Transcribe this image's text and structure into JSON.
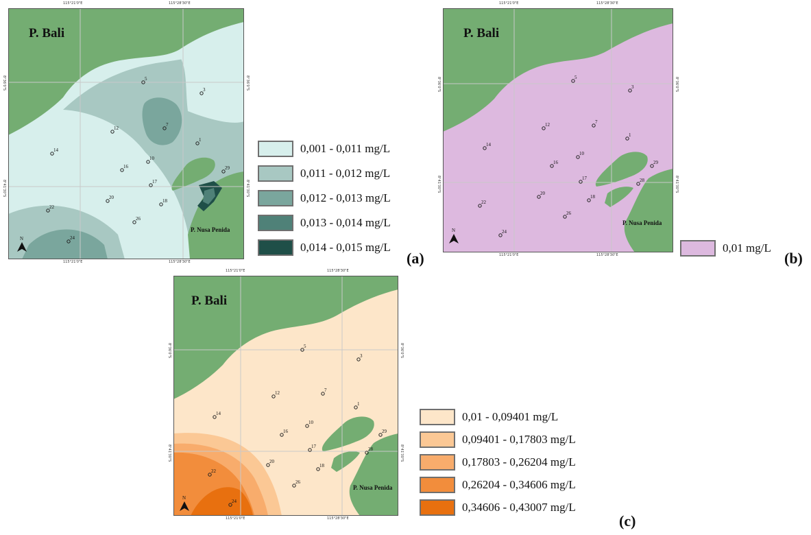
{
  "panels": [
    {
      "id": "a",
      "label": "(a)",
      "island_main": "P. Bali",
      "island_small": "P. Nusa Penida",
      "north": "N",
      "coords": {
        "top_left": "115°21'0\"E",
        "top_right": "115°28'30\"E",
        "bottom_left": "115°21'0\"E",
        "bottom_right": "115°28'30\"E",
        "left_top": "8°36'0\"S",
        "left_bottom": "8°41'30\"S",
        "right_top": "8°36'0\"S",
        "right_bottom": "8°41'30\"S"
      },
      "stations": [
        "5",
        "3",
        "7",
        "12",
        "14",
        "1",
        "10",
        "16",
        "29",
        "17",
        "20",
        "18",
        "22",
        "26",
        "24"
      ],
      "legend": [
        {
          "label": "0,001 - 0,011 mg/L",
          "color": "#d7efec"
        },
        {
          "label": "0,011 - 0,012 mg/L",
          "color": "#a8c8c2"
        },
        {
          "label": "0,012 - 0,013 mg/L",
          "color": "#7aa69d"
        },
        {
          "label": "0,013 - 0,014 mg/L",
          "color": "#4f8178"
        },
        {
          "label": "0,014 - 0,015 mg/L",
          "color": "#1f4f48"
        }
      ]
    },
    {
      "id": "b",
      "label": "(b)",
      "island_main": "P. Bali",
      "island_small": "P. Nusa Penida",
      "north": "N",
      "coords": {
        "top_left": "115°21'0\"E",
        "top_right": "115°28'30\"E",
        "bottom_left": "115°21'0\"E",
        "bottom_right": "115°28'30\"E",
        "left_top": "8°36'0\"S",
        "left_bottom": "8°41'30\"S",
        "right_top": "8°36'0\"S",
        "right_bottom": "8°41'30\"S"
      },
      "stations": [
        "5",
        "3",
        "12",
        "7",
        "14",
        "1",
        "10",
        "16",
        "29",
        "17",
        "28",
        "20",
        "18",
        "22",
        "26",
        "24"
      ],
      "legend": [
        {
          "label": "0,01 mg/L",
          "color": "#ddb9df"
        }
      ]
    },
    {
      "id": "c",
      "label": "(c)",
      "island_main": "P. Bali",
      "island_small": "P. Nusa Penida",
      "north": "N",
      "coords": {
        "top_left": "115°21'0\"E",
        "top_right": "115°28'30\"E",
        "bottom_left": "115°21'0\"E",
        "bottom_right": "115°28'30\"E",
        "left_top": "8°36'0\"S",
        "left_bottom": "8°41'30\"S",
        "right_top": "8°36'0\"S",
        "right_bottom": "8°41'30\"S"
      },
      "stations": [
        "5",
        "3",
        "12",
        "7",
        "14",
        "1",
        "10",
        "16",
        "29",
        "17",
        "28",
        "20",
        "18",
        "22",
        "26",
        "24"
      ],
      "legend": [
        {
          "label": "0,01 - 0,09401 mg/L",
          "color": "#fde6c9"
        },
        {
          "label": "0,09401 - 0,17803 mg/L",
          "color": "#fbc895"
        },
        {
          "label": "0,17803 - 0,26204 mg/L",
          "color": "#f8ac6c"
        },
        {
          "label": "0,26204 - 0,34606 mg/L",
          "color": "#f28d3c"
        },
        {
          "label": "0,34606 - 0,43007 mg/L",
          "color": "#e8700f"
        }
      ]
    }
  ],
  "colors": {
    "land": "#74ad72",
    "grid": "#c9c9c9",
    "frame": "#555555"
  }
}
